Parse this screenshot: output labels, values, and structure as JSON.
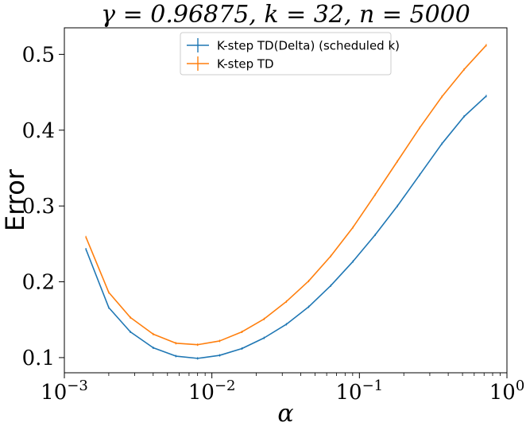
{
  "chart_data": {
    "type": "line",
    "title": "γ = 0.96875, k = 32, n = 5000",
    "xlabel": "α",
    "ylabel": "Error",
    "xscale": "log",
    "xlim": [
      0.001,
      1
    ],
    "ylim": [
      0.08,
      0.535
    ],
    "x_ticks": [
      {
        "value": 0.001,
        "base": "10",
        "exp": "−3"
      },
      {
        "value": 0.01,
        "base": "10",
        "exp": "−2"
      },
      {
        "value": 0.1,
        "base": "10",
        "exp": "−1"
      },
      {
        "value": 1,
        "base": "10",
        "exp": "0"
      }
    ],
    "y_ticks": [
      {
        "value": 0.1,
        "label": "0.1"
      },
      {
        "value": 0.2,
        "label": "0.2"
      },
      {
        "value": 0.3,
        "label": "0.3"
      },
      {
        "value": 0.4,
        "label": "0.4"
      },
      {
        "value": 0.5,
        "label": "0.5"
      }
    ],
    "grid": false,
    "legend_position": "top-center",
    "series": [
      {
        "name": "K-step TD(Delta) (scheduled k)",
        "color": "#1f77b4",
        "x": [
          0.0014,
          0.002,
          0.0028,
          0.004,
          0.0057,
          0.008,
          0.0113,
          0.016,
          0.0226,
          0.032,
          0.0453,
          0.064,
          0.0906,
          0.128,
          0.181,
          0.256,
          0.362,
          0.512,
          0.724
        ],
        "y": [
          0.243,
          0.166,
          0.134,
          0.113,
          0.102,
          0.099,
          0.103,
          0.112,
          0.126,
          0.144,
          0.167,
          0.195,
          0.227,
          0.262,
          0.3,
          0.341,
          0.382,
          0.418,
          0.445
        ]
      },
      {
        "name": "K-step TD",
        "color": "#ff7f0e",
        "x": [
          0.0014,
          0.002,
          0.0028,
          0.004,
          0.0057,
          0.008,
          0.0113,
          0.016,
          0.0226,
          0.032,
          0.0453,
          0.064,
          0.0906,
          0.128,
          0.181,
          0.256,
          0.362,
          0.512,
          0.724
        ],
        "y": [
          0.259,
          0.186,
          0.153,
          0.131,
          0.119,
          0.117,
          0.122,
          0.134,
          0.151,
          0.174,
          0.201,
          0.234,
          0.272,
          0.315,
          0.359,
          0.403,
          0.444,
          0.48,
          0.512
        ]
      }
    ]
  }
}
